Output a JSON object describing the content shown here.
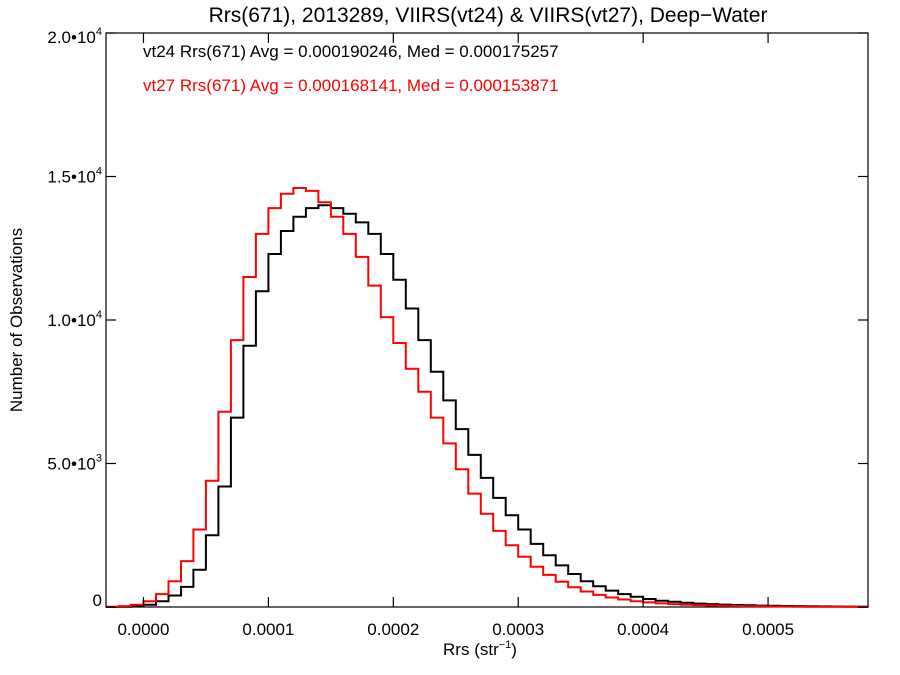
{
  "chart_data": {
    "type": "line",
    "title": "Rrs(671), 2013289, VIIRS(vt24) & VIIRS(vt27), Deep−Water",
    "xlabel_base": "Rrs (str",
    "xlabel_sup": "−1",
    "xlabel_close": ")",
    "ylabel": "Number of Observations",
    "xlim": [
      -3e-05,
      0.00058
    ],
    "ylim": [
      0,
      20000
    ],
    "grid": false,
    "x_ticks": [
      {
        "value": 0.0,
        "label": "0.0000"
      },
      {
        "value": 0.0001,
        "label": "0.0001"
      },
      {
        "value": 0.0002,
        "label": "0.0002"
      },
      {
        "value": 0.0003,
        "label": "0.0003"
      },
      {
        "value": 0.0004,
        "label": "0.0004"
      },
      {
        "value": 0.0005,
        "label": "0.0005"
      }
    ],
    "y_ticks": [
      {
        "value": 0,
        "base": "0",
        "exp": ""
      },
      {
        "value": 5000,
        "base": "5.0•10",
        "exp": "3"
      },
      {
        "value": 10000,
        "base": "1.0•10",
        "exp": "4"
      },
      {
        "value": 15000,
        "base": "1.5•10",
        "exp": "4"
      },
      {
        "value": 20000,
        "base": "2.0•10",
        "exp": "4"
      }
    ],
    "annotations": [
      {
        "text": "vt24 Rrs(671) Avg = 0.000190246, Med = 0.000175257",
        "color": "#000000"
      },
      {
        "text": "vt27 Rrs(671) Avg = 0.000168141, Med = 0.000153871",
        "color": "#ff0000"
      }
    ],
    "series": [
      {
        "color": "#000000",
        "x": [
          -3e-05,
          -2e-05,
          -1e-05,
          0.0,
          1e-05,
          2e-05,
          3e-05,
          4e-05,
          5e-05,
          6e-05,
          7e-05,
          8e-05,
          9e-05,
          0.0001,
          0.00011,
          0.00012,
          0.00013,
          0.00014,
          0.00015,
          0.00016,
          0.00017,
          0.00018,
          0.00019,
          0.0002,
          0.00021,
          0.00022,
          0.00023,
          0.00024,
          0.00025,
          0.00026,
          0.00027,
          0.00028,
          0.00029,
          0.0003,
          0.00031,
          0.00032,
          0.00033,
          0.00034,
          0.00035,
          0.00036,
          0.00037,
          0.00038,
          0.00039,
          0.0004,
          0.00041,
          0.00042,
          0.00043,
          0.00044,
          0.00045,
          0.00046,
          0.00047,
          0.00048,
          0.00049,
          0.0005,
          0.00051,
          0.00052,
          0.00053,
          0.00054,
          0.00055,
          0.00056,
          0.00057,
          0.00058
        ],
        "y": [
          0,
          10,
          30,
          80,
          200,
          400,
          700,
          1300,
          2500,
          4200,
          6600,
          9100,
          11000,
          12300,
          13100,
          13600,
          13900,
          14000,
          13900,
          13700,
          13400,
          13000,
          12300,
          11400,
          10400,
          9300,
          8200,
          7200,
          6200,
          5300,
          4500,
          3800,
          3200,
          2700,
          2200,
          1800,
          1450,
          1150,
          900,
          720,
          570,
          450,
          360,
          280,
          220,
          180,
          145,
          120,
          100,
          85,
          70,
          60,
          50,
          42,
          36,
          30,
          25,
          20,
          17,
          14,
          12,
          10
        ]
      },
      {
        "color": "#ff0000",
        "x": [
          -3e-05,
          -2e-05,
          -1e-05,
          0.0,
          1e-05,
          2e-05,
          3e-05,
          4e-05,
          5e-05,
          6e-05,
          7e-05,
          8e-05,
          9e-05,
          0.0001,
          0.00011,
          0.00012,
          0.00013,
          0.00014,
          0.00015,
          0.00016,
          0.00017,
          0.00018,
          0.00019,
          0.0002,
          0.00021,
          0.00022,
          0.00023,
          0.00024,
          0.00025,
          0.00026,
          0.00027,
          0.00028,
          0.00029,
          0.0003,
          0.00031,
          0.00032,
          0.00033,
          0.00034,
          0.00035,
          0.00036,
          0.00037,
          0.00038,
          0.00039,
          0.0004,
          0.00041,
          0.00042,
          0.00043,
          0.00044,
          0.00045,
          0.00046,
          0.00047,
          0.00048,
          0.00049,
          0.0005,
          0.00051,
          0.00052,
          0.00053,
          0.00054,
          0.00055,
          0.00056,
          0.00057,
          0.00058
        ],
        "y": [
          10,
          30,
          80,
          200,
          450,
          900,
          1600,
          2700,
          4400,
          6800,
          9300,
          11500,
          13000,
          13900,
          14400,
          14600,
          14500,
          14100,
          13600,
          13000,
          12200,
          11200,
          10100,
          9200,
          8300,
          7500,
          6600,
          5700,
          4800,
          3950,
          3250,
          2650,
          2150,
          1750,
          1400,
          1120,
          880,
          690,
          540,
          420,
          330,
          260,
          200,
          160,
          125,
          100,
          80,
          65,
          52,
          42,
          35,
          28,
          23,
          19,
          16,
          13,
          11,
          9,
          8,
          7,
          6,
          5
        ]
      }
    ]
  }
}
